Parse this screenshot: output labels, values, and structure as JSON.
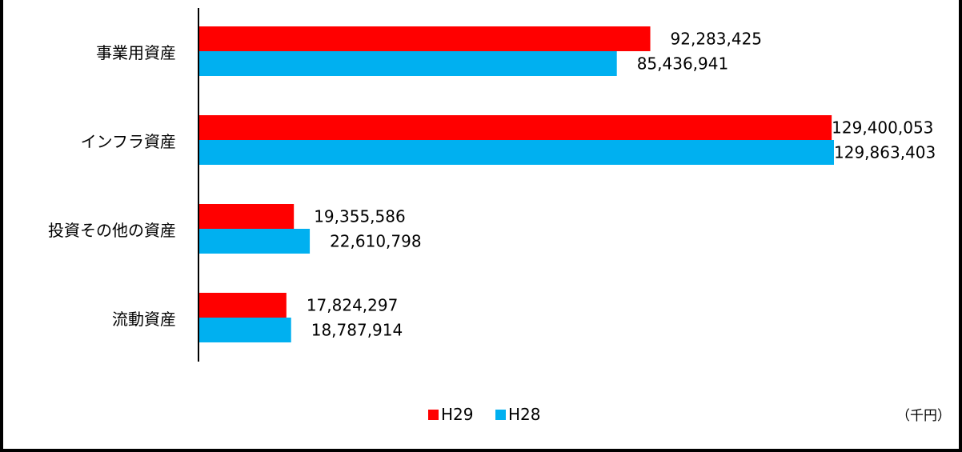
{
  "chart_data": {
    "type": "bar",
    "orientation": "horizontal",
    "categories": [
      "事業用資産",
      "インフラ資産",
      "投資その他の資産",
      "流動資産"
    ],
    "series": [
      {
        "name": "H29",
        "color": "#ff0000",
        "values": [
          92283425,
          129400053,
          19355586,
          17824297
        ],
        "labels": [
          "92,283,425",
          "129,400,053",
          "19,355,586",
          "17,824,297"
        ]
      },
      {
        "name": "H28",
        "color": "#00b0f0",
        "values": [
          85436941,
          129863403,
          22610798,
          18787914
        ],
        "labels": [
          "85,436,941",
          "129,863,403",
          "22,610,798",
          "18,787,914"
        ]
      }
    ],
    "xlim": [
      0,
      130000000
    ],
    "unit": "（千円）",
    "legend": "bottom-center",
    "grid": false
  }
}
